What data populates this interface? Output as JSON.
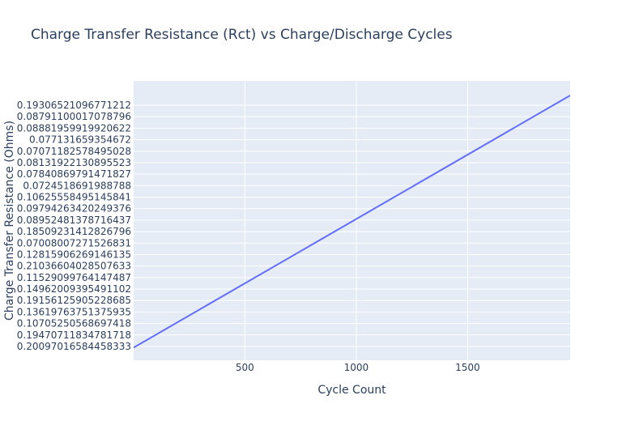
{
  "chart_data": {
    "type": "line",
    "title": "Charge Transfer Resistance (Rct) vs Charge/Discharge Cycles",
    "xlabel": "Cycle Count",
    "ylabel": "Charge Transfer Resistance (Ohms)",
    "xlim": [
      1,
      1960
    ],
    "y_axis_type": "category",
    "x_ticks": [
      {
        "value": 500,
        "label": "500"
      },
      {
        "value": 1000,
        "label": "1000"
      },
      {
        "value": 1500,
        "label": "1500"
      }
    ],
    "y_categories": [
      "0.20097016584458333",
      "0.19470711834781718",
      "0.10705250568697418",
      "0.13619763751375935",
      "0.19156125905228685",
      "0.14962009395491102",
      "0.11529099764147487",
      "0.21036604028507633",
      "0.12815906269146135",
      "0.07008007271526831",
      "0.18509231412826796",
      "0.08952481378716437",
      "0.09794263420249376",
      "0.10625558495145841",
      "0.0724518691988788",
      "0.07840869791471827",
      "0.08131922130895523",
      "0.07071182578495028",
      "0.077131659354672",
      "0.08881959919920622",
      "0.08791100017078796",
      "0.19306521096771212"
    ],
    "series": [
      {
        "color": "#636efa",
        "x": [
          1,
          1960
        ],
        "y_index": [
          -0.1,
          21.85
        ]
      }
    ],
    "grid": true,
    "legend": false,
    "colors": {
      "plot_bg": "#e5ecf6",
      "grid": "#ffffff",
      "text": "#2a3f5f",
      "line": "#636efa"
    }
  }
}
